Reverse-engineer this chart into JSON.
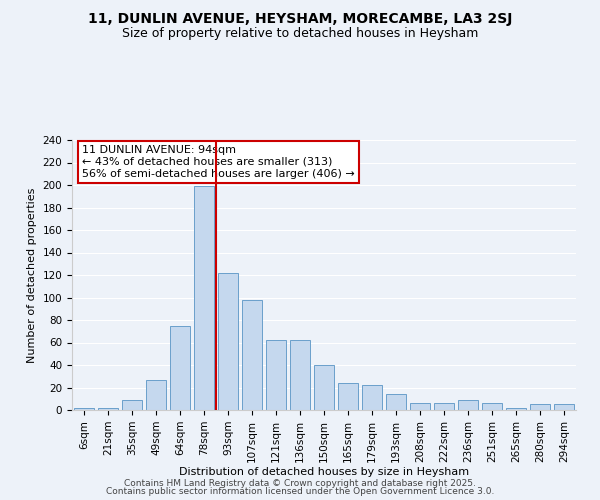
{
  "title": "11, DUNLIN AVENUE, HEYSHAM, MORECAMBE, LA3 2SJ",
  "subtitle": "Size of property relative to detached houses in Heysham",
  "xlabel": "Distribution of detached houses by size in Heysham",
  "ylabel": "Number of detached properties",
  "footer_line1": "Contains HM Land Registry data © Crown copyright and database right 2025.",
  "footer_line2": "Contains public sector information licensed under the Open Government Licence 3.0.",
  "categories": [
    "6sqm",
    "21sqm",
    "35sqm",
    "49sqm",
    "64sqm",
    "78sqm",
    "93sqm",
    "107sqm",
    "121sqm",
    "136sqm",
    "150sqm",
    "165sqm",
    "179sqm",
    "193sqm",
    "208sqm",
    "222sqm",
    "236sqm",
    "251sqm",
    "265sqm",
    "280sqm",
    "294sqm"
  ],
  "values": [
    2,
    2,
    9,
    27,
    75,
    199,
    122,
    98,
    62,
    62,
    40,
    24,
    22,
    14,
    6,
    6,
    9,
    6,
    2,
    5,
    5
  ],
  "subject_bin_index": 5,
  "bar_color_normal": "#c5d8ee",
  "bar_edge_color": "#6a9fcb",
  "subject_line_color": "#cc0000",
  "annotation_box_color": "#cc0000",
  "pct_smaller": 43,
  "count_smaller": 313,
  "pct_larger": 56,
  "count_larger": 406,
  "ylim": [
    0,
    240
  ],
  "yticks": [
    0,
    20,
    40,
    60,
    80,
    100,
    120,
    140,
    160,
    180,
    200,
    220,
    240
  ],
  "bg_color": "#edf2f9",
  "plot_bg_color": "#edf2f9",
  "grid_color": "#ffffff",
  "title_fontsize": 10,
  "subtitle_fontsize": 9,
  "label_fontsize": 8,
  "tick_fontsize": 7.5,
  "footer_fontsize": 6.5,
  "ann_fontsize": 8
}
